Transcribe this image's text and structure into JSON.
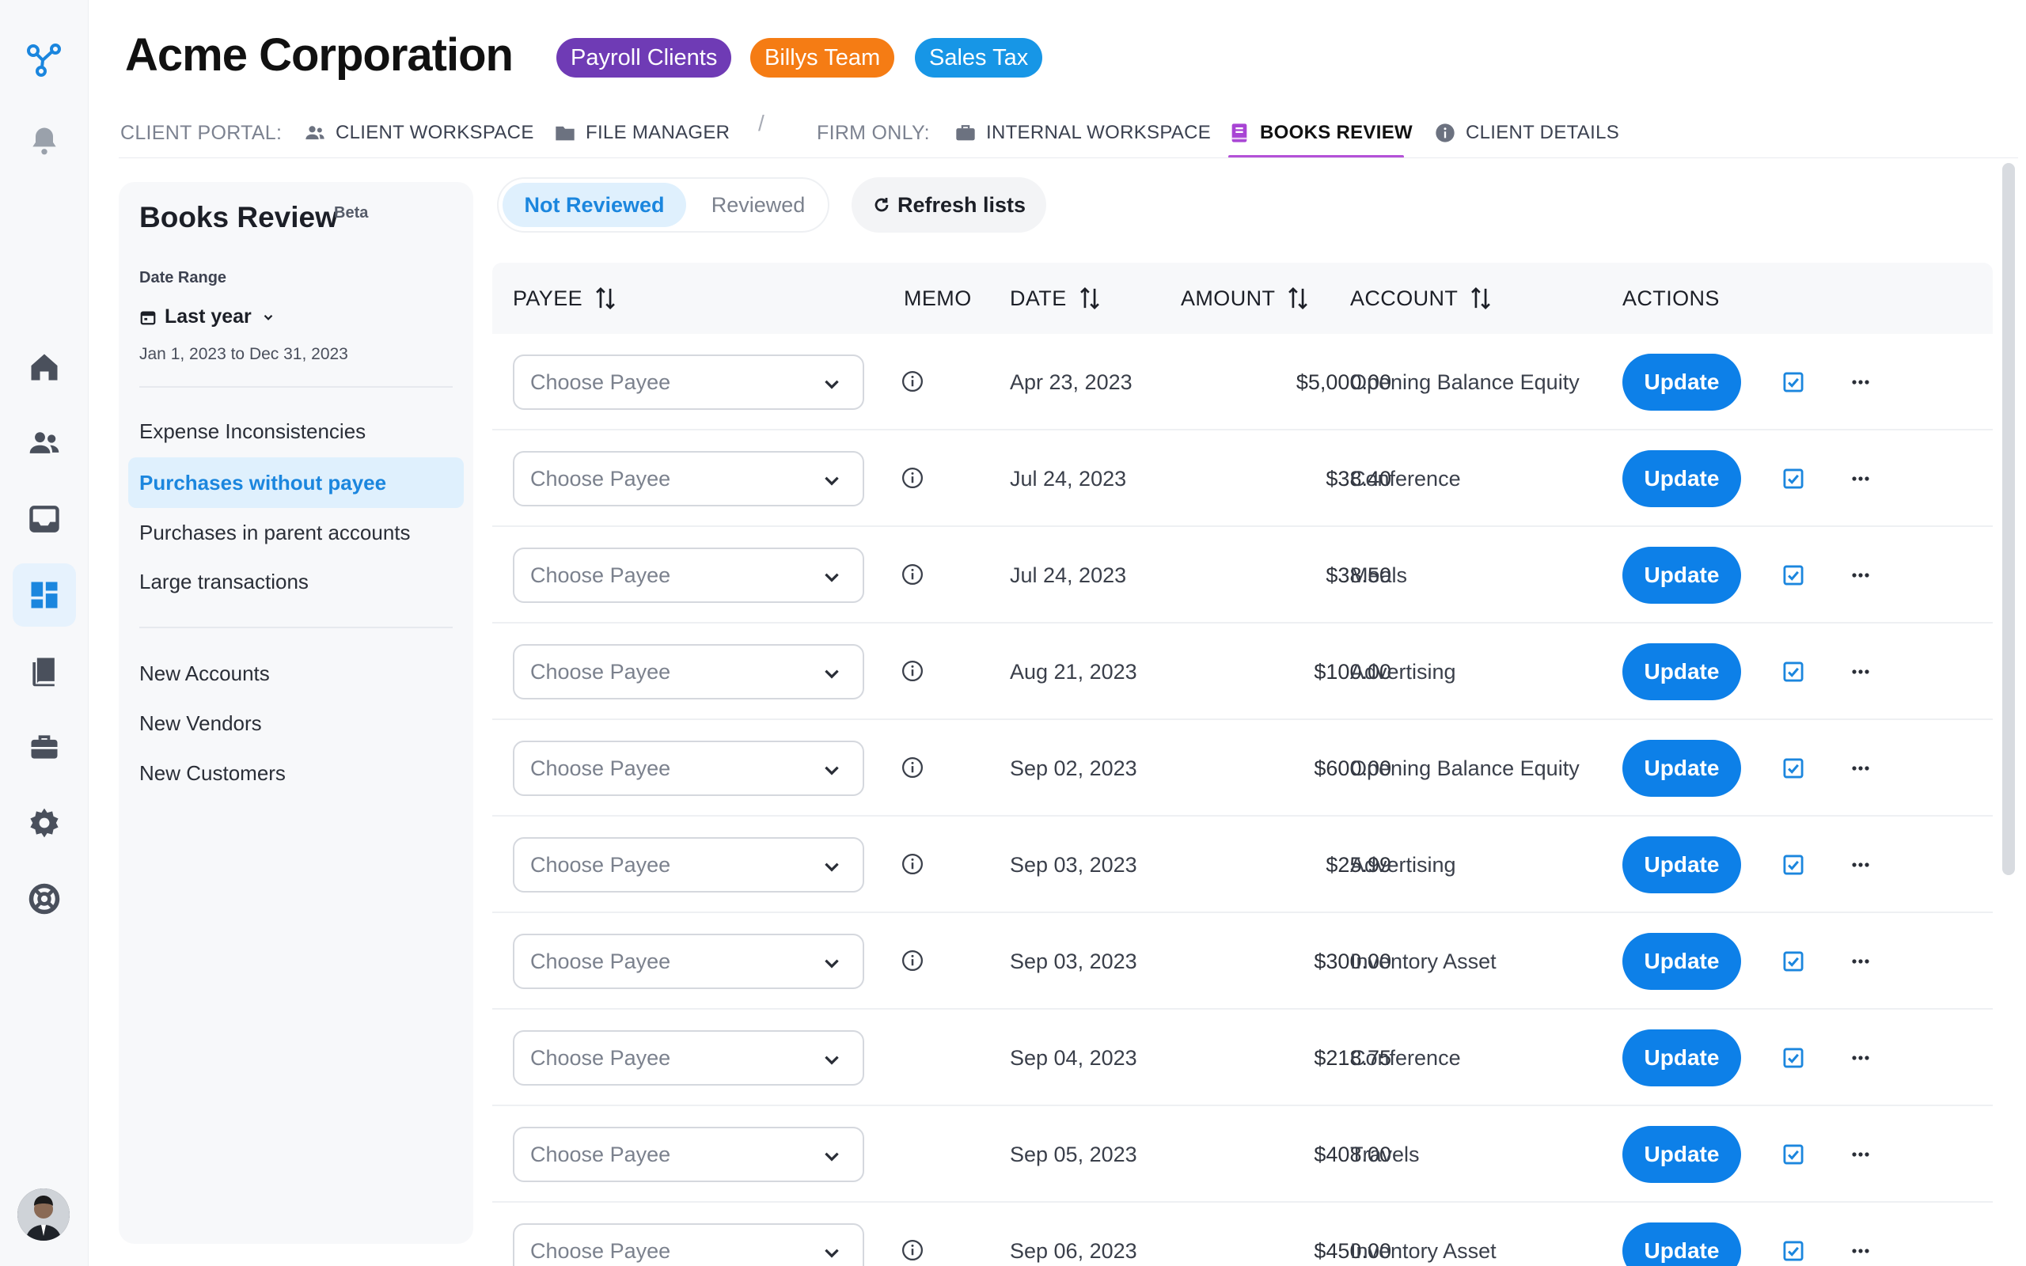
{
  "colors": {
    "brand": "#1b86de",
    "update_button": "#0d80e8",
    "active_tab_underline": "#b451d8",
    "tag_payroll": "#6f3bb5",
    "tag_billys": "#f57c14",
    "tag_sales": "#1796e6"
  },
  "rail": {
    "logo": "brand-logo-icon",
    "items": [
      {
        "icon": "bell-icon"
      },
      {
        "icon": "home-icon"
      },
      {
        "icon": "users-icon"
      },
      {
        "icon": "inbox-icon"
      },
      {
        "icon": "dashboard-icon",
        "active": true
      },
      {
        "icon": "books-icon"
      },
      {
        "icon": "briefcase-icon"
      },
      {
        "icon": "gear-icon"
      },
      {
        "icon": "support-icon"
      }
    ],
    "avatar": "avatar"
  },
  "header": {
    "title": "Acme Corporation",
    "tags": [
      "Payroll Clients",
      "Billys Team",
      "Sales Tax"
    ]
  },
  "nav": {
    "client_portal_label": "CLIENT PORTAL:",
    "client_workspace": "CLIENT WORKSPACE",
    "file_manager": "FILE MANAGER",
    "separator": "/",
    "firm_only_label": "FIRM ONLY:",
    "internal_workspace": "INTERNAL WORKSPACE",
    "books_review": "BOOKS REVIEW",
    "client_details": "CLIENT DETAILS"
  },
  "panel": {
    "title": "Books Review",
    "beta": "Beta",
    "date_range_label": "Date Range",
    "date_range_value": "Last year",
    "date_range_text": "Jan 1, 2023 to Dec 31, 2023",
    "links_group1": [
      "Expense Inconsistencies",
      "Purchases without payee",
      "Purchases in parent accounts",
      "Large transactions"
    ],
    "links_group2": [
      "New Accounts",
      "New Vendors",
      "New Customers"
    ],
    "active_link": "Purchases without payee"
  },
  "toolbar": {
    "not_reviewed": "Not Reviewed",
    "reviewed": "Reviewed",
    "refresh": "Refresh lists"
  },
  "table": {
    "columns": {
      "payee": "PAYEE",
      "memo": "MEMO",
      "date": "DATE",
      "amount": "AMOUNT",
      "account": "ACCOUNT",
      "actions": "ACTIONS"
    },
    "payee_placeholder": "Choose Payee",
    "update_label": "Update",
    "rows": [
      {
        "date": "Apr 23, 2023",
        "amount": "$5,000.00",
        "account": "Opening Balance Equity",
        "memo": true
      },
      {
        "date": "Jul 24, 2023",
        "amount": "$38.40",
        "account": "Conference",
        "memo": true
      },
      {
        "date": "Jul 24, 2023",
        "amount": "$38.50",
        "account": "Meals",
        "memo": true
      },
      {
        "date": "Aug 21, 2023",
        "amount": "$100.00",
        "account": "Advertising",
        "memo": true
      },
      {
        "date": "Sep 02, 2023",
        "amount": "$600.00",
        "account": "Opening Balance Equity",
        "memo": true
      },
      {
        "date": "Sep 03, 2023",
        "amount": "$25.99",
        "account": "Advertising",
        "memo": true
      },
      {
        "date": "Sep 03, 2023",
        "amount": "$300.00",
        "account": "Inventory Asset",
        "memo": true
      },
      {
        "date": "Sep 04, 2023",
        "amount": "$218.75",
        "account": "Conference",
        "memo": false
      },
      {
        "date": "Sep 05, 2023",
        "amount": "$408.00",
        "account": "Travels",
        "memo": false
      },
      {
        "date": "Sep 06, 2023",
        "amount": "$450.00",
        "account": "Inventory Asset",
        "memo": true
      }
    ]
  }
}
